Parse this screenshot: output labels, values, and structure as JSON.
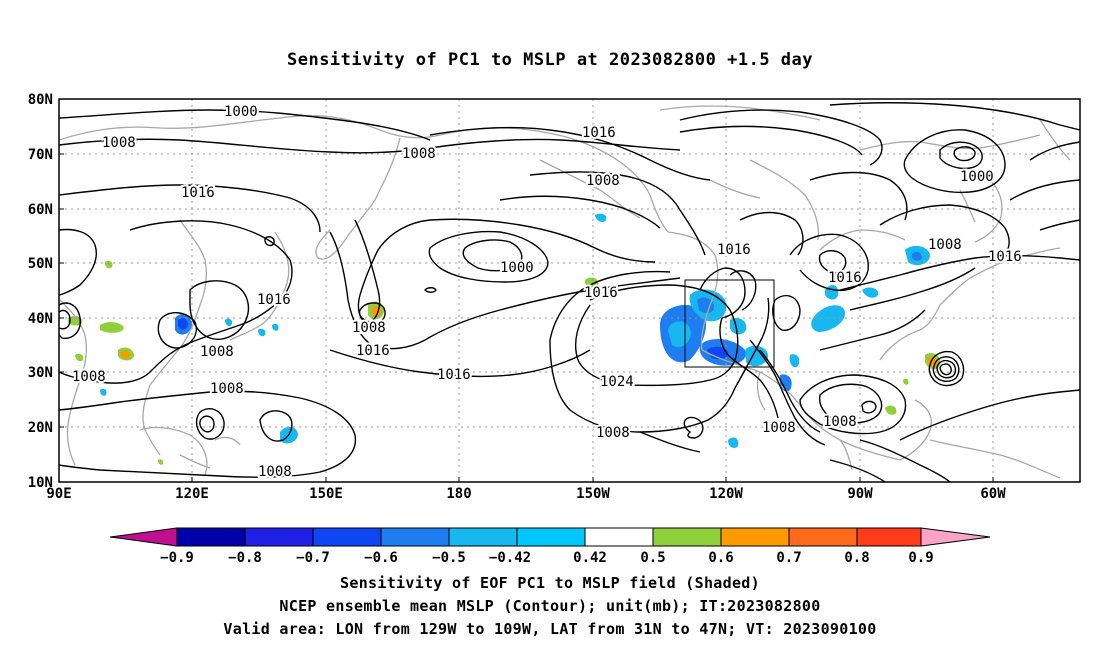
{
  "title": "Sensitivity of PC1 to MSLP at 2023082800 +1.5 day",
  "lat_labels": [
    "80N",
    "70N",
    "60N",
    "50N",
    "40N",
    "30N",
    "20N",
    "10N"
  ],
  "lon_labels": [
    "90E",
    "120E",
    "150E",
    "180",
    "150W",
    "120W",
    "90W",
    "60W"
  ],
  "contour_labels": [
    {
      "text": "1000"
    },
    {
      "text": "1008"
    },
    {
      "text": "1008"
    },
    {
      "text": "1016"
    },
    {
      "text": "1016"
    },
    {
      "text": "1008"
    },
    {
      "text": "1000"
    },
    {
      "text": "1000"
    },
    {
      "text": "1016"
    },
    {
      "text": "1016"
    },
    {
      "text": "1016"
    },
    {
      "text": "1008"
    },
    {
      "text": "1016"
    },
    {
      "text": "1008"
    },
    {
      "text": "1008"
    },
    {
      "text": "1008"
    },
    {
      "text": "1016"
    },
    {
      "text": "1008"
    },
    {
      "text": "1016"
    },
    {
      "text": "1008"
    },
    {
      "text": "1024"
    },
    {
      "text": "1016"
    },
    {
      "text": "1008"
    },
    {
      "text": "1008"
    },
    {
      "text": "1008"
    }
  ],
  "colorbar": {
    "labels": [
      "−0.9",
      "−0.8",
      "−0.7",
      "−0.6",
      "−0.5",
      "−0.42",
      "0.42",
      "0.5",
      "0.6",
      "0.7",
      "0.8",
      "0.9"
    ],
    "colors": [
      "#c0108f",
      "#0000aa",
      "#1f1fe6",
      "#0d46f2",
      "#1e7df0",
      "#17b7f0",
      "#00c8ff",
      "#ffffff",
      "#8fcf3a",
      "#ff9900",
      "#ff6a1a",
      "#ff3b1a",
      "#ff0000",
      "#ffa3c8"
    ]
  },
  "captions": [
    "Sensitivity of EOF PC1 to MSLP field (Shaded)",
    "NCEP ensemble mean MSLP (Contour); unit(mb); IT:2023082800",
    "Valid area: LON from 129W to 109W, LAT from 31N to 47N; VT: 2023090100"
  ]
}
